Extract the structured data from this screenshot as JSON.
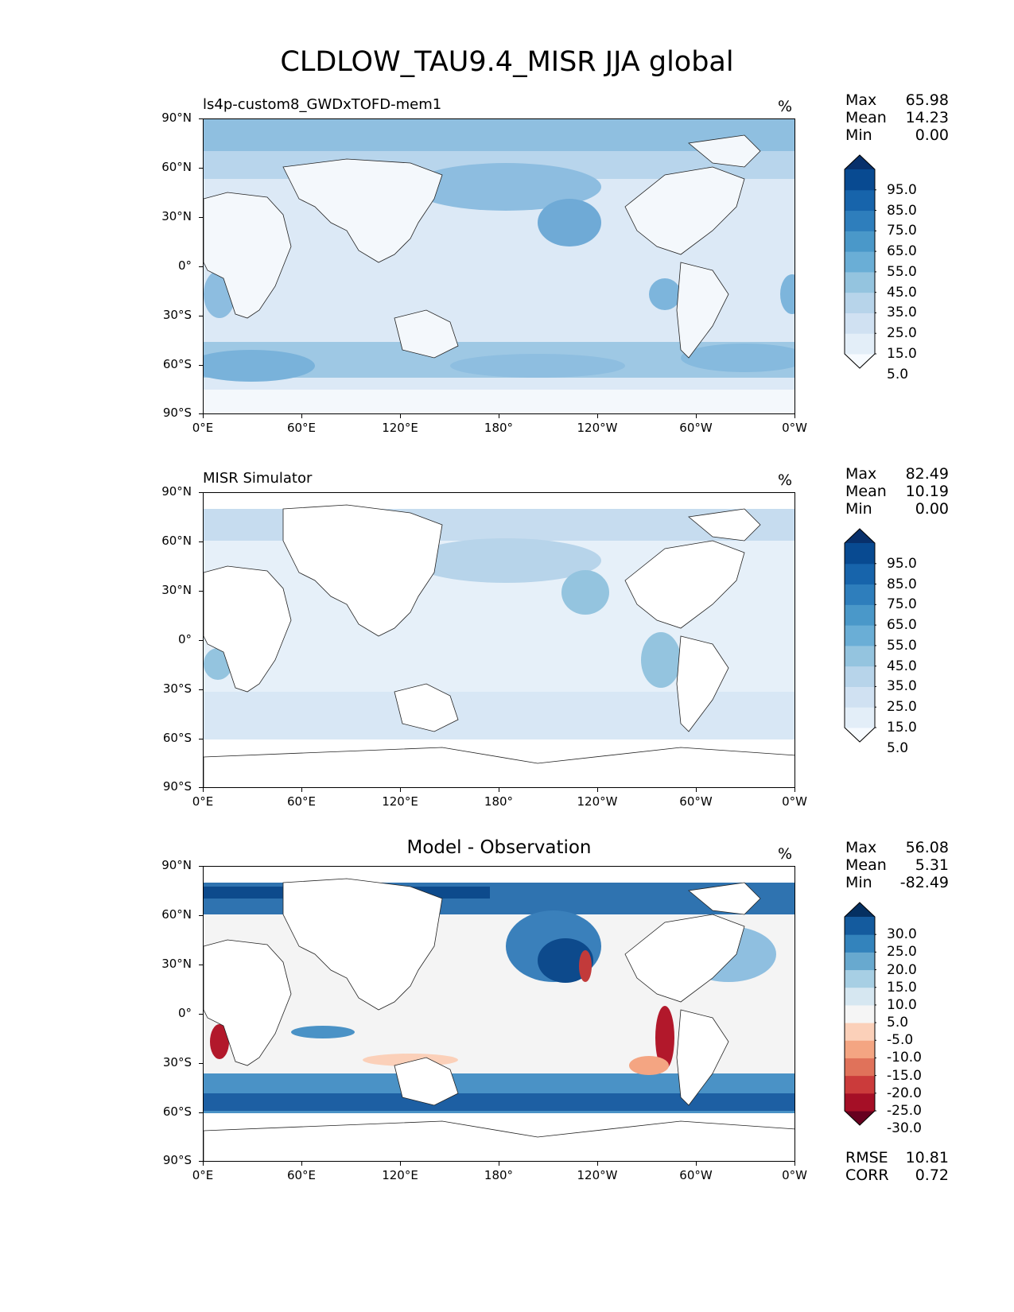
{
  "title": "CLDLOW_TAU9.4_MISR JJA global",
  "lat_labels": [
    "90°N",
    "60°N",
    "30°N",
    "0°",
    "30°S",
    "60°S",
    "90°S"
  ],
  "lon_labels": [
    "0°E",
    "60°E",
    "120°E",
    "180°",
    "120°W",
    "60°W",
    "0°W"
  ],
  "panels": [
    {
      "title": "ls4p-custom8_GWDxTOFD-mem1",
      "units": "%",
      "stats": {
        "max_label": "Max",
        "max": "65.98",
        "mean_label": "Mean",
        "mean": "14.23",
        "min_label": "Min",
        "min": "0.00"
      },
      "colorbar": {
        "labels": [
          "95.0",
          "85.0",
          "75.0",
          "65.0",
          "55.0",
          "45.0",
          "35.0",
          "25.0",
          "15.0",
          "5.0"
        ],
        "colors": [
          "#f7fbff",
          "#e3eef8",
          "#d0e1f2",
          "#b7d4ea",
          "#94c4df",
          "#6aaed6",
          "#4a98c9",
          "#2e7ebc",
          "#1764ab",
          "#084a91",
          "#08306b"
        ]
      }
    },
    {
      "title": "MISR Simulator",
      "units": "%",
      "stats": {
        "max_label": "Max",
        "max": "82.49",
        "mean_label": "Mean",
        "mean": "10.19",
        "min_label": "Min",
        "min": "0.00"
      },
      "colorbar": {
        "labels": [
          "95.0",
          "85.0",
          "75.0",
          "65.0",
          "55.0",
          "45.0",
          "35.0",
          "25.0",
          "15.0",
          "5.0"
        ],
        "colors": [
          "#f7fbff",
          "#e3eef8",
          "#d0e1f2",
          "#b7d4ea",
          "#94c4df",
          "#6aaed6",
          "#4a98c9",
          "#2e7ebc",
          "#1764ab",
          "#084a91",
          "#08306b"
        ]
      }
    },
    {
      "title": "Model - Observation",
      "units": "%",
      "stats": {
        "max_label": "Max",
        "max": "56.08",
        "mean_label": "Mean",
        "mean": "5.31",
        "min_label": "Min",
        "min": "-82.49"
      },
      "colorbar": {
        "labels": [
          "30.0",
          "25.0",
          "20.0",
          "15.0",
          "10.0",
          "5.0",
          "-5.0",
          "-10.0",
          "-15.0",
          "-20.0",
          "-25.0",
          "-30.0"
        ],
        "colors": [
          "#67001f",
          "#a50f26",
          "#cb3b3b",
          "#e0725a",
          "#f4a582",
          "#fbd0b9",
          "#f5f5f5",
          "#d6e7f1",
          "#a7cfe4",
          "#68a9cf",
          "#3383bc",
          "#145b9e",
          "#053061"
        ]
      }
    }
  ],
  "rmse_label": "RMSE",
  "rmse": "10.81",
  "corr_label": "CORR",
  "corr": "0.72"
}
